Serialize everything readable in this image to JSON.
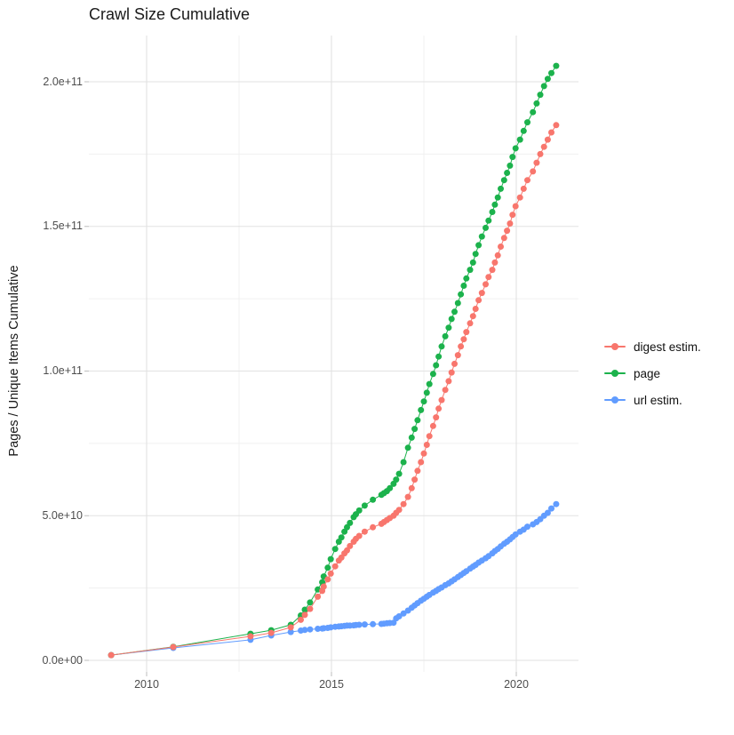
{
  "title": "Crawl Size Cumulative",
  "axes": {
    "y_label": "Pages / Unique Items Cumulative",
    "x_ticks": [
      {
        "v": 2010,
        "label": "2010"
      },
      {
        "v": 2015,
        "label": "2015"
      },
      {
        "v": 2020,
        "label": "2020"
      }
    ],
    "y_ticks": [
      {
        "v": 0,
        "label": "0.0e+00"
      },
      {
        "v": 50,
        "label": "5.0e+10"
      },
      {
        "v": 100,
        "label": "1.0e+11"
      },
      {
        "v": 150,
        "label": "1.5e+11"
      },
      {
        "v": 200,
        "label": "2.0e+11"
      }
    ],
    "x_minor_gridlines": [
      2012.5,
      2017.5
    ],
    "y_minor_gridlines": [
      25,
      75,
      125,
      175
    ]
  },
  "colors": {
    "digest": "#F8766D",
    "page": "#1CB24C",
    "url": "#619CFF",
    "grid_major": "#E2E2E2",
    "grid_minor": "#F0F0F0",
    "tick_mark": "#BDBDBD"
  },
  "legend": {
    "items": [
      {
        "id": "digest",
        "label": "digest estim.",
        "color": "#F8766D"
      },
      {
        "id": "page",
        "label": "page",
        "color": "#1CB24C"
      },
      {
        "id": "url",
        "label": "url estim.",
        "color": "#619CFF"
      }
    ]
  },
  "chart_data": {
    "type": "line",
    "title": "Crawl Size Cumulative",
    "xlabel": "",
    "ylabel": "Pages / Unique Items Cumulative",
    "x_unit": "year (decimal)",
    "y_unit": "items ×1e9 (axis shown 0.0e+00 to 2.0e+11)",
    "xlim": [
      2008.4,
      2021.8
    ],
    "ylim_e9": [
      -10,
      216
    ],
    "grid": true,
    "legend_position": "right",
    "marker": "point",
    "series": [
      {
        "name": "url estim.",
        "color": "#619CFF",
        "points": [
          [
            2009.04,
            1.8
          ],
          [
            2010.72,
            4.3
          ],
          [
            2012.81,
            7.1
          ],
          [
            2013.37,
            8.6
          ],
          [
            2013.9,
            9.8
          ],
          [
            2014.17,
            10.3
          ],
          [
            2014.28,
            10.5
          ],
          [
            2014.42,
            10.7
          ],
          [
            2014.63,
            10.9
          ],
          [
            2014.75,
            11.0
          ],
          [
            2014.79,
            11.1
          ],
          [
            2014.9,
            11.2
          ],
          [
            2014.98,
            11.4
          ],
          [
            2015.1,
            11.6
          ],
          [
            2015.2,
            11.7
          ],
          [
            2015.27,
            11.8
          ],
          [
            2015.35,
            11.9
          ],
          [
            2015.42,
            12.0
          ],
          [
            2015.5,
            12.0
          ],
          [
            2015.6,
            12.1
          ],
          [
            2015.66,
            12.2
          ],
          [
            2015.75,
            12.3
          ],
          [
            2015.9,
            12.4
          ],
          [
            2016.12,
            12.5
          ],
          [
            2016.35,
            12.6
          ],
          [
            2016.42,
            12.7
          ],
          [
            2016.5,
            12.8
          ],
          [
            2016.58,
            12.9
          ],
          [
            2016.68,
            13.0
          ],
          [
            2016.75,
            14.5
          ],
          [
            2016.83,
            15.2
          ],
          [
            2016.95,
            16.2
          ],
          [
            2017.07,
            17.2
          ],
          [
            2017.17,
            18.2
          ],
          [
            2017.25,
            19.0
          ],
          [
            2017.33,
            19.8
          ],
          [
            2017.42,
            20.6
          ],
          [
            2017.5,
            21.3
          ],
          [
            2017.58,
            22.0
          ],
          [
            2017.65,
            22.6
          ],
          [
            2017.75,
            23.4
          ],
          [
            2017.83,
            24.0
          ],
          [
            2017.9,
            24.6
          ],
          [
            2017.98,
            25.2
          ],
          [
            2018.08,
            26.0
          ],
          [
            2018.17,
            26.6
          ],
          [
            2018.25,
            27.3
          ],
          [
            2018.33,
            28.0
          ],
          [
            2018.42,
            28.8
          ],
          [
            2018.5,
            29.5
          ],
          [
            2018.58,
            30.2
          ],
          [
            2018.65,
            30.8
          ],
          [
            2018.75,
            31.7
          ],
          [
            2018.83,
            32.4
          ],
          [
            2018.9,
            33.0
          ],
          [
            2018.98,
            33.8
          ],
          [
            2019.07,
            34.5
          ],
          [
            2019.17,
            35.3
          ],
          [
            2019.25,
            36.0
          ],
          [
            2019.35,
            37.0
          ],
          [
            2019.42,
            37.8
          ],
          [
            2019.5,
            38.5
          ],
          [
            2019.58,
            39.4
          ],
          [
            2019.67,
            40.3
          ],
          [
            2019.75,
            41.0
          ],
          [
            2019.83,
            41.8
          ],
          [
            2019.9,
            42.6
          ],
          [
            2019.98,
            43.5
          ],
          [
            2020.1,
            44.5
          ],
          [
            2020.2,
            45.2
          ],
          [
            2020.3,
            46.2
          ],
          [
            2020.45,
            47.0
          ],
          [
            2020.55,
            47.8
          ],
          [
            2020.65,
            48.8
          ],
          [
            2020.75,
            50.0
          ],
          [
            2020.85,
            51.0
          ],
          [
            2020.95,
            52.5
          ],
          [
            2021.08,
            54.0
          ]
        ]
      },
      {
        "name": "page",
        "color": "#1CB24C",
        "points": [
          [
            2009.04,
            1.8
          ],
          [
            2010.72,
            4.7
          ],
          [
            2012.81,
            9.2
          ],
          [
            2013.37,
            10.4
          ],
          [
            2013.9,
            12.3
          ],
          [
            2014.17,
            15.5
          ],
          [
            2014.28,
            17.5
          ],
          [
            2014.42,
            20.0
          ],
          [
            2014.63,
            24.5
          ],
          [
            2014.75,
            27.0
          ],
          [
            2014.79,
            29.0
          ],
          [
            2014.9,
            32.0
          ],
          [
            2014.98,
            35.0
          ],
          [
            2015.1,
            38.5
          ],
          [
            2015.2,
            41.0
          ],
          [
            2015.27,
            42.5
          ],
          [
            2015.35,
            44.5
          ],
          [
            2015.42,
            46.0
          ],
          [
            2015.5,
            47.5
          ],
          [
            2015.6,
            49.5
          ],
          [
            2015.66,
            50.5
          ],
          [
            2015.75,
            51.8
          ],
          [
            2015.9,
            53.5
          ],
          [
            2016.12,
            55.5
          ],
          [
            2016.35,
            57.2
          ],
          [
            2016.42,
            57.8
          ],
          [
            2016.5,
            58.5
          ],
          [
            2016.58,
            59.5
          ],
          [
            2016.68,
            61.0
          ],
          [
            2016.75,
            62.5
          ],
          [
            2016.83,
            64.5
          ],
          [
            2016.95,
            68.5
          ],
          [
            2017.07,
            73.5
          ],
          [
            2017.17,
            77.0
          ],
          [
            2017.25,
            80.0
          ],
          [
            2017.33,
            83.0
          ],
          [
            2017.42,
            86.5
          ],
          [
            2017.5,
            89.5
          ],
          [
            2017.58,
            92.5
          ],
          [
            2017.65,
            95.5
          ],
          [
            2017.75,
            99.0
          ],
          [
            2017.83,
            102.0
          ],
          [
            2017.9,
            105.0
          ],
          [
            2017.98,
            108.5
          ],
          [
            2018.08,
            112.0
          ],
          [
            2018.17,
            115.0
          ],
          [
            2018.25,
            118.0
          ],
          [
            2018.33,
            120.5
          ],
          [
            2018.42,
            123.5
          ],
          [
            2018.5,
            126.5
          ],
          [
            2018.58,
            129.5
          ],
          [
            2018.65,
            132.0
          ],
          [
            2018.75,
            135.0
          ],
          [
            2018.83,
            137.5
          ],
          [
            2018.9,
            140.5
          ],
          [
            2018.98,
            143.5
          ],
          [
            2019.07,
            146.5
          ],
          [
            2019.17,
            149.5
          ],
          [
            2019.25,
            152.0
          ],
          [
            2019.35,
            155.0
          ],
          [
            2019.42,
            157.5
          ],
          [
            2019.5,
            160.0
          ],
          [
            2019.58,
            163.0
          ],
          [
            2019.67,
            166.0
          ],
          [
            2019.75,
            168.5
          ],
          [
            2019.83,
            171.0
          ],
          [
            2019.9,
            174.0
          ],
          [
            2019.98,
            177.0
          ],
          [
            2020.1,
            180.0
          ],
          [
            2020.2,
            183.0
          ],
          [
            2020.3,
            186.0
          ],
          [
            2020.45,
            189.5
          ],
          [
            2020.55,
            192.5
          ],
          [
            2020.65,
            195.5
          ],
          [
            2020.75,
            198.5
          ],
          [
            2020.85,
            201.0
          ],
          [
            2020.95,
            203.0
          ],
          [
            2021.08,
            205.5
          ]
        ]
      },
      {
        "name": "digest estim.",
        "color": "#F8766D",
        "points": [
          [
            2009.04,
            1.8
          ],
          [
            2010.72,
            4.6
          ],
          [
            2012.81,
            8.3
          ],
          [
            2013.37,
            9.5
          ],
          [
            2013.9,
            11.4
          ],
          [
            2014.17,
            14.0
          ],
          [
            2014.28,
            15.7
          ],
          [
            2014.42,
            17.8
          ],
          [
            2014.63,
            22.0
          ],
          [
            2014.75,
            24.0
          ],
          [
            2014.79,
            25.5
          ],
          [
            2014.9,
            28.0
          ],
          [
            2014.98,
            30.0
          ],
          [
            2015.1,
            32.5
          ],
          [
            2015.2,
            34.5
          ],
          [
            2015.27,
            35.5
          ],
          [
            2015.35,
            37.0
          ],
          [
            2015.42,
            38.0
          ],
          [
            2015.5,
            39.5
          ],
          [
            2015.6,
            41.0
          ],
          [
            2015.66,
            42.0
          ],
          [
            2015.75,
            43.0
          ],
          [
            2015.9,
            44.5
          ],
          [
            2016.12,
            46.0
          ],
          [
            2016.35,
            47.2
          ],
          [
            2016.42,
            47.8
          ],
          [
            2016.5,
            48.5
          ],
          [
            2016.58,
            49.2
          ],
          [
            2016.68,
            50.0
          ],
          [
            2016.75,
            51.0
          ],
          [
            2016.83,
            52.0
          ],
          [
            2016.95,
            54.0
          ],
          [
            2017.07,
            56.5
          ],
          [
            2017.17,
            59.5
          ],
          [
            2017.25,
            62.5
          ],
          [
            2017.33,
            65.5
          ],
          [
            2017.42,
            68.5
          ],
          [
            2017.5,
            71.5
          ],
          [
            2017.58,
            74.5
          ],
          [
            2017.65,
            77.5
          ],
          [
            2017.75,
            81.0
          ],
          [
            2017.83,
            84.0
          ],
          [
            2017.9,
            87.0
          ],
          [
            2017.98,
            90.0
          ],
          [
            2018.08,
            93.5
          ],
          [
            2018.17,
            96.5
          ],
          [
            2018.25,
            99.5
          ],
          [
            2018.33,
            102.5
          ],
          [
            2018.42,
            105.5
          ],
          [
            2018.5,
            108.5
          ],
          [
            2018.58,
            111.0
          ],
          [
            2018.65,
            113.5
          ],
          [
            2018.75,
            116.5
          ],
          [
            2018.83,
            119.0
          ],
          [
            2018.9,
            121.5
          ],
          [
            2018.98,
            124.5
          ],
          [
            2019.07,
            127.0
          ],
          [
            2019.17,
            130.0
          ],
          [
            2019.25,
            132.5
          ],
          [
            2019.35,
            135.0
          ],
          [
            2019.42,
            137.5
          ],
          [
            2019.5,
            140.0
          ],
          [
            2019.58,
            143.0
          ],
          [
            2019.67,
            146.0
          ],
          [
            2019.75,
            148.5
          ],
          [
            2019.83,
            151.0
          ],
          [
            2019.9,
            154.0
          ],
          [
            2019.98,
            157.0
          ],
          [
            2020.1,
            160.0
          ],
          [
            2020.2,
            163.0
          ],
          [
            2020.3,
            166.0
          ],
          [
            2020.45,
            169.0
          ],
          [
            2020.55,
            172.0
          ],
          [
            2020.65,
            175.0
          ],
          [
            2020.75,
            177.5
          ],
          [
            2020.85,
            180.0
          ],
          [
            2020.95,
            182.5
          ],
          [
            2021.08,
            185.0
          ]
        ]
      }
    ]
  }
}
